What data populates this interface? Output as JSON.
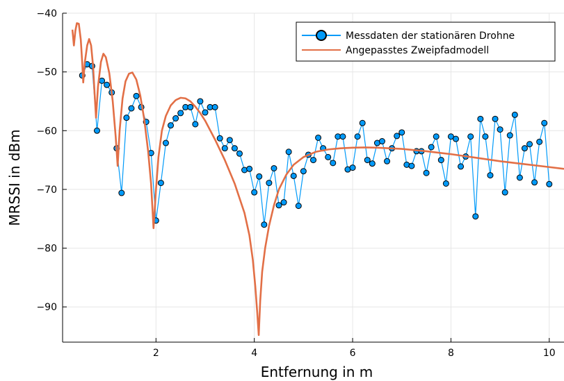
{
  "chart_data": {
    "type": "line",
    "title": "",
    "xlabel": "Entfernung in m",
    "ylabel": "MRSSI in dBm",
    "xlim": [
      0.1,
      10.3
    ],
    "ylim": [
      -96,
      -40
    ],
    "xticks": [
      2,
      4,
      6,
      8,
      10
    ],
    "yticks": [
      -40,
      -50,
      -60,
      -70,
      -80,
      -90
    ],
    "grid": true,
    "legend_position": "top-right",
    "series": [
      {
        "name": "Messdaten der stationären Drohne",
        "kind": "line+markers",
        "color": "#009AF9",
        "points": [
          [
            0.5,
            -50.6
          ],
          [
            0.6,
            -48.7
          ],
          [
            0.7,
            -49.0
          ],
          [
            0.8,
            -60.0
          ],
          [
            0.9,
            -51.5
          ],
          [
            1.0,
            -52.2
          ],
          [
            1.1,
            -53.5
          ],
          [
            1.2,
            -63.0
          ],
          [
            1.3,
            -70.6
          ],
          [
            1.4,
            -57.8
          ],
          [
            1.5,
            -56.2
          ],
          [
            1.6,
            -54.1
          ],
          [
            1.7,
            -56.0
          ],
          [
            1.8,
            -58.5
          ],
          [
            1.9,
            -63.8
          ],
          [
            2.0,
            -75.3
          ],
          [
            2.1,
            -68.9
          ],
          [
            2.2,
            -62.1
          ],
          [
            2.3,
            -59.1
          ],
          [
            2.4,
            -57.9
          ],
          [
            2.5,
            -57.0
          ],
          [
            2.6,
            -56.0
          ],
          [
            2.7,
            -56.0
          ],
          [
            2.8,
            -58.9
          ],
          [
            2.9,
            -55.0
          ],
          [
            3.0,
            -56.9
          ],
          [
            3.1,
            -56.0
          ],
          [
            3.2,
            -56.0
          ],
          [
            3.3,
            -61.3
          ],
          [
            3.4,
            -63.0
          ],
          [
            3.5,
            -61.6
          ],
          [
            3.6,
            -63.0
          ],
          [
            3.7,
            -63.9
          ],
          [
            3.8,
            -66.7
          ],
          [
            3.9,
            -66.5
          ],
          [
            4.0,
            -70.5
          ],
          [
            4.1,
            -67.8
          ],
          [
            4.2,
            -76.0
          ],
          [
            4.3,
            -68.9
          ],
          [
            4.4,
            -66.4
          ],
          [
            4.5,
            -72.7
          ],
          [
            4.6,
            -72.2
          ],
          [
            4.7,
            -63.6
          ],
          [
            4.8,
            -67.7
          ],
          [
            4.9,
            -72.8
          ],
          [
            5.0,
            -66.9
          ],
          [
            5.1,
            -64.1
          ],
          [
            5.2,
            -65.0
          ],
          [
            5.3,
            -61.2
          ],
          [
            5.4,
            -63.0
          ],
          [
            5.5,
            -64.5
          ],
          [
            5.6,
            -65.5
          ],
          [
            5.7,
            -61.0
          ],
          [
            5.8,
            -61.0
          ],
          [
            5.9,
            -66.6
          ],
          [
            6.0,
            -66.3
          ],
          [
            6.1,
            -61.0
          ],
          [
            6.2,
            -58.7
          ],
          [
            6.3,
            -65.0
          ],
          [
            6.4,
            -65.6
          ],
          [
            6.5,
            -62.1
          ],
          [
            6.6,
            -61.8
          ],
          [
            6.7,
            -65.2
          ],
          [
            6.8,
            -63.0
          ],
          [
            6.9,
            -60.9
          ],
          [
            7.0,
            -60.3
          ],
          [
            7.1,
            -65.8
          ],
          [
            7.2,
            -66.0
          ],
          [
            7.3,
            -63.5
          ],
          [
            7.4,
            -63.5
          ],
          [
            7.5,
            -67.2
          ],
          [
            7.6,
            -62.8
          ],
          [
            7.7,
            -61.0
          ],
          [
            7.8,
            -65.0
          ],
          [
            7.9,
            -69.0
          ],
          [
            8.0,
            -61.0
          ],
          [
            8.1,
            -61.4
          ],
          [
            8.2,
            -66.1
          ],
          [
            8.3,
            -64.4
          ],
          [
            8.4,
            -61.0
          ],
          [
            8.5,
            -74.6
          ],
          [
            8.6,
            -58.0
          ],
          [
            8.7,
            -61.0
          ],
          [
            8.8,
            -67.6
          ],
          [
            8.9,
            -58.0
          ],
          [
            9.0,
            -59.8
          ],
          [
            9.1,
            -70.5
          ],
          [
            9.2,
            -60.8
          ],
          [
            9.3,
            -57.3
          ],
          [
            9.4,
            -68.0
          ],
          [
            9.5,
            -63.0
          ],
          [
            9.6,
            -62.3
          ],
          [
            9.7,
            -68.8
          ],
          [
            9.8,
            -61.9
          ],
          [
            9.9,
            -58.7
          ],
          [
            10.0,
            -69.1
          ]
        ]
      },
      {
        "name": "Angepasstes Zweipfadmodell",
        "kind": "line",
        "color": "#E26F46",
        "points": [
          [
            0.3,
            -42.8
          ],
          [
            0.33,
            -45.5
          ],
          [
            0.36,
            -43.0
          ],
          [
            0.39,
            -41.7
          ],
          [
            0.43,
            -41.8
          ],
          [
            0.47,
            -44.5
          ],
          [
            0.5,
            -48.5
          ],
          [
            0.52,
            -51.8
          ],
          [
            0.55,
            -48.5
          ],
          [
            0.6,
            -45.5
          ],
          [
            0.64,
            -44.4
          ],
          [
            0.68,
            -45.5
          ],
          [
            0.72,
            -49.0
          ],
          [
            0.75,
            -53.5
          ],
          [
            0.78,
            -57.8
          ],
          [
            0.82,
            -52.5
          ],
          [
            0.88,
            -48.3
          ],
          [
            0.93,
            -46.9
          ],
          [
            0.98,
            -47.5
          ],
          [
            1.05,
            -50.2
          ],
          [
            1.12,
            -55.0
          ],
          [
            1.18,
            -61.0
          ],
          [
            1.22,
            -66.0
          ],
          [
            1.26,
            -60.0
          ],
          [
            1.32,
            -54.5
          ],
          [
            1.38,
            -51.6
          ],
          [
            1.45,
            -50.3
          ],
          [
            1.52,
            -50.1
          ],
          [
            1.6,
            -51.3
          ],
          [
            1.68,
            -54.0
          ],
          [
            1.76,
            -58.0
          ],
          [
            1.84,
            -63.5
          ],
          [
            1.9,
            -69.0
          ],
          [
            1.95,
            -76.6
          ],
          [
            2.0,
            -70.0
          ],
          [
            2.05,
            -64.5
          ],
          [
            2.12,
            -60.0
          ],
          [
            2.2,
            -57.5
          ],
          [
            2.3,
            -55.7
          ],
          [
            2.4,
            -54.8
          ],
          [
            2.5,
            -54.4
          ],
          [
            2.6,
            -54.5
          ],
          [
            2.7,
            -55.0
          ],
          [
            2.8,
            -55.9
          ],
          [
            2.9,
            -57.0
          ],
          [
            3.0,
            -58.3
          ],
          [
            3.2,
            -61.5
          ],
          [
            3.4,
            -65.0
          ],
          [
            3.6,
            -69.0
          ],
          [
            3.8,
            -74.0
          ],
          [
            3.9,
            -77.8
          ],
          [
            3.97,
            -82.0
          ],
          [
            4.02,
            -86.5
          ],
          [
            4.06,
            -91.0
          ],
          [
            4.09,
            -94.8
          ],
          [
            4.12,
            -89.0
          ],
          [
            4.16,
            -84.0
          ],
          [
            4.22,
            -80.0
          ],
          [
            4.3,
            -76.2
          ],
          [
            4.4,
            -72.7
          ],
          [
            4.5,
            -70.0
          ],
          [
            4.65,
            -67.5
          ],
          [
            4.8,
            -65.8
          ],
          [
            5.0,
            -64.5
          ],
          [
            5.25,
            -63.6
          ],
          [
            5.5,
            -63.2
          ],
          [
            5.75,
            -63.0
          ],
          [
            6.0,
            -62.9
          ],
          [
            6.25,
            -62.85
          ],
          [
            6.5,
            -62.9
          ],
          [
            7.0,
            -63.1
          ],
          [
            7.5,
            -63.5
          ],
          [
            8.0,
            -64.0
          ],
          [
            8.5,
            -64.6
          ],
          [
            9.0,
            -65.2
          ],
          [
            9.5,
            -65.7
          ],
          [
            10.0,
            -66.2
          ],
          [
            10.3,
            -66.5
          ]
        ]
      }
    ]
  }
}
